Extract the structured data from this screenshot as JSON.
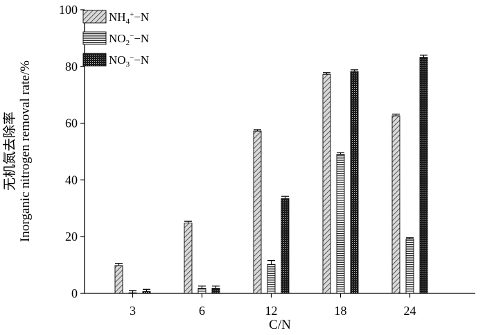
{
  "chart_data": {
    "type": "bar",
    "xlabel": "C/N",
    "ylabel_cn": "无机氮去除率",
    "ylabel_en": "Inorganic nitrogen removal rate/%",
    "ylim": [
      0,
      100
    ],
    "yticks": [
      "0",
      "20",
      "40",
      "60",
      "80",
      "100"
    ],
    "categories": [
      "3",
      "6",
      "12",
      "18",
      "24"
    ],
    "series": [
      {
        "name": "NH4+−N",
        "label_base": "NH",
        "label_sub": "4",
        "label_sup": "+",
        "label_tail": "−N",
        "pattern": "diagonal-hatch",
        "values": [
          9.8,
          24.8,
          57.2,
          77.2,
          62.6
        ],
        "errors": [
          0.8,
          0.6,
          0.5,
          0.6,
          0.6
        ]
      },
      {
        "name": "NO2−−N",
        "label_base": "NO",
        "label_sub": "2",
        "label_sup": "−",
        "label_tail": "−N",
        "pattern": "horizontal-stripes",
        "values": [
          0.2,
          1.8,
          10.2,
          49.0,
          19.2
        ],
        "errors": [
          0.8,
          0.8,
          1.4,
          0.6,
          0.4
        ]
      },
      {
        "name": "NO3−−N",
        "label_base": "NO",
        "label_sub": "3",
        "label_sup": "−",
        "label_tail": "−N",
        "pattern": "dense-dots",
        "values": [
          0.7,
          1.8,
          33.4,
          78.2,
          83.2
        ],
        "errors": [
          0.7,
          0.8,
          0.8,
          0.6,
          0.8
        ]
      }
    ],
    "legend_position": "top-left",
    "grid": false
  }
}
